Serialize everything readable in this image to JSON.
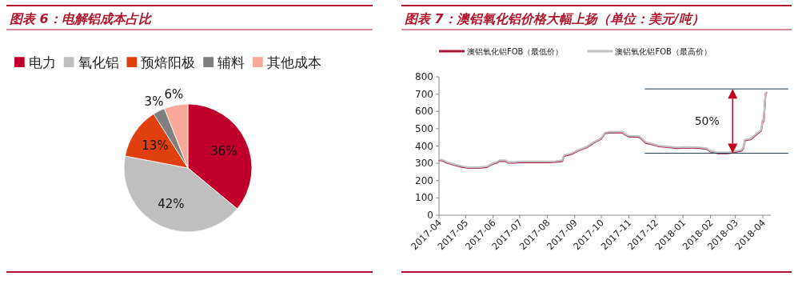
{
  "chart_data": [
    {
      "type": "pie",
      "title": "图表 6：电解铝成本占比",
      "legend": "top",
      "categories": [
        "电力",
        "氧化铝",
        "预焙阳极",
        "辅料",
        "其他成本"
      ],
      "values": [
        36,
        42,
        13,
        3,
        6
      ],
      "colors": [
        "#c0002a",
        "#bfbfbf",
        "#e04010",
        "#7f7f7f",
        "#f8a898"
      ],
      "value_labels": [
        "36%",
        "42%",
        "13%",
        "3%",
        "6%"
      ]
    },
    {
      "type": "line",
      "title": "图表 7：澳铝氧化铝价格大幅上扬（单位：美元/吨）",
      "legend": "top",
      "grid": false,
      "xlim": [
        "2017-04-01",
        "2018-04-10"
      ],
      "ylim": [
        0,
        800
      ],
      "yticks": [
        0,
        100,
        200,
        300,
        400,
        500,
        600,
        700,
        800
      ],
      "xticks": [
        {
          "value": "2017-04-01",
          "label": "2017-04"
        },
        {
          "value": "2017-05-01",
          "label": "2017-05"
        },
        {
          "value": "2017-06-01",
          "label": "2017-06"
        },
        {
          "value": "2017-07-01",
          "label": "2017-07"
        },
        {
          "value": "2017-08-01",
          "label": "2017-08"
        },
        {
          "value": "2017-09-01",
          "label": "2017-09"
        },
        {
          "value": "2017-10-01",
          "label": "2017-10"
        },
        {
          "value": "2017-11-01",
          "label": "2017-11"
        },
        {
          "value": "2017-12-01",
          "label": "2017-12"
        },
        {
          "value": "2018-01-01",
          "label": "2018-01"
        },
        {
          "value": "2018-02-01",
          "label": "2018-02"
        },
        {
          "value": "2018-03-01",
          "label": "2018-03"
        },
        {
          "value": "2018-04-01",
          "label": "2018-04"
        }
      ],
      "x": [
        "2017-04-01",
        "2017-04-05",
        "2017-04-10",
        "2017-04-20",
        "2017-04-28",
        "2017-05-05",
        "2017-05-15",
        "2017-05-25",
        "2017-06-01",
        "2017-06-05",
        "2017-06-08",
        "2017-06-15",
        "2017-06-18",
        "2017-06-25",
        "2017-07-01",
        "2017-07-15",
        "2017-08-01",
        "2017-08-10",
        "2017-08-18",
        "2017-08-20",
        "2017-08-28",
        "2017-09-05",
        "2017-09-15",
        "2017-09-22",
        "2017-09-28",
        "2017-10-01",
        "2017-10-05",
        "2017-10-10",
        "2017-10-25",
        "2017-10-27",
        "2017-11-01",
        "2017-11-12",
        "2017-11-15",
        "2017-11-20",
        "2017-11-28",
        "2017-12-05",
        "2017-12-15",
        "2017-12-25",
        "2018-01-05",
        "2018-01-20",
        "2018-01-28",
        "2018-02-01",
        "2018-02-10",
        "2018-02-20",
        "2018-03-01",
        "2018-03-08",
        "2018-03-10",
        "2018-03-12",
        "2018-03-18",
        "2018-03-25",
        "2018-03-30",
        "2018-04-01",
        "2018-04-02",
        "2018-04-04",
        "2018-04-05"
      ],
      "series": [
        {
          "name": "澳铝氧化铝FOB（最低价）",
          "color": "#a8163a",
          "values": [
            318,
            316,
            303,
            288,
            278,
            273,
            273,
            278,
            298,
            303,
            313,
            313,
            303,
            303,
            306,
            306,
            306,
            308,
            313,
            343,
            353,
            373,
            393,
            418,
            433,
            443,
            473,
            478,
            478,
            468,
            455,
            453,
            443,
            418,
            408,
            398,
            393,
            388,
            390,
            388,
            383,
            368,
            358,
            358,
            366,
            373,
            388,
            433,
            438,
            468,
            488,
            548,
            543,
            698,
            708
          ]
        },
        {
          "name": "澳铝氧化铝FOB（最高价）",
          "color": "#c0c0c0",
          "values": [
            322,
            320,
            307,
            292,
            282,
            277,
            277,
            282,
            302,
            307,
            317,
            317,
            307,
            307,
            310,
            310,
            310,
            312,
            317,
            347,
            357,
            377,
            397,
            422,
            437,
            447,
            477,
            482,
            482,
            472,
            459,
            457,
            447,
            422,
            412,
            402,
            397,
            392,
            394,
            392,
            387,
            372,
            362,
            362,
            370,
            377,
            392,
            437,
            442,
            472,
            492,
            552,
            547,
            702,
            712
          ]
        }
      ],
      "ref_lines": [
        {
          "axis": "y",
          "value": 730,
          "color": "#1f3a4d"
        },
        {
          "axis": "y",
          "value": 358,
          "color": "#1f3a4d"
        }
      ],
      "annotations": [
        "50%"
      ]
    }
  ]
}
